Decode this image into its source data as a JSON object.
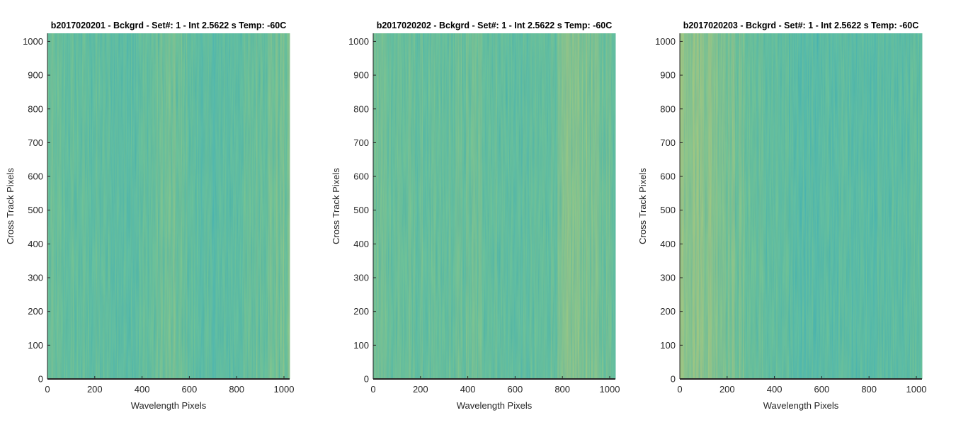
{
  "colors": {
    "teal": "#22a7b4",
    "yellow": "#c8c258",
    "green": "#55b58a",
    "axis": "#262626"
  },
  "chart_data": [
    {
      "type": "heatmap",
      "title": "b2017020201 - Bckgrd - Set#: 1 - Int 2.5622 s Temp: -60C",
      "xlabel": "Wavelength Pixels",
      "ylabel": "Cross Track Pixels",
      "xlim": [
        0,
        1024
      ],
      "ylim": [
        0,
        1024
      ],
      "xticks": [
        0,
        200,
        400,
        600,
        800,
        1000
      ],
      "yticks": [
        0,
        100,
        200,
        300,
        400,
        500,
        600,
        700,
        800,
        900,
        1000
      ],
      "colormap": "parula",
      "column_profile": {
        "x": [
          0,
          64,
          128,
          192,
          256,
          320,
          384,
          448,
          512,
          576,
          640,
          704,
          768,
          832,
          896,
          960,
          1024
        ],
        "level": [
          0.5,
          0.45,
          0.44,
          0.42,
          0.4,
          0.38,
          0.42,
          0.48,
          0.55,
          0.48,
          0.38,
          0.34,
          0.38,
          0.44,
          0.52,
          0.56,
          0.56
        ]
      }
    },
    {
      "type": "heatmap",
      "title": "b2017020202 - Bckgrd - Set#: 1 - Int 2.5622 s Temp: -60C",
      "xlabel": "Wavelength Pixels",
      "ylabel": "Cross Track Pixels",
      "xlim": [
        0,
        1024
      ],
      "ylim": [
        0,
        1024
      ],
      "xticks": [
        0,
        200,
        400,
        600,
        800,
        1000
      ],
      "yticks": [
        0,
        100,
        200,
        300,
        400,
        500,
        600,
        700,
        800,
        900,
        1000
      ],
      "colormap": "parula",
      "column_profile": {
        "x": [
          0,
          64,
          128,
          192,
          256,
          320,
          384,
          448,
          512,
          576,
          640,
          704,
          768,
          832,
          896,
          960,
          1024
        ],
        "level": [
          0.58,
          0.52,
          0.5,
          0.46,
          0.44,
          0.46,
          0.5,
          0.52,
          0.48,
          0.42,
          0.4,
          0.44,
          0.5,
          0.66,
          0.64,
          0.55,
          0.5
        ]
      }
    },
    {
      "type": "heatmap",
      "title": "b2017020203 - Bckgrd - Set#: 1 - Int 2.5622 s Temp: -60C",
      "xlabel": "Wavelength Pixels",
      "ylabel": "Cross Track Pixels",
      "xlim": [
        0,
        1024
      ],
      "ylim": [
        0,
        1024
      ],
      "xticks": [
        0,
        200,
        400,
        600,
        800,
        1000
      ],
      "yticks": [
        0,
        100,
        200,
        300,
        400,
        500,
        600,
        700,
        800,
        900,
        1000
      ],
      "colormap": "parula",
      "column_profile": {
        "x": [
          0,
          64,
          128,
          192,
          256,
          320,
          384,
          448,
          512,
          576,
          640,
          704,
          768,
          832,
          896,
          960,
          1024
        ],
        "level": [
          0.78,
          0.74,
          0.7,
          0.64,
          0.56,
          0.48,
          0.42,
          0.38,
          0.34,
          0.32,
          0.34,
          0.38,
          0.36,
          0.34,
          0.36,
          0.4,
          0.42
        ]
      }
    }
  ]
}
